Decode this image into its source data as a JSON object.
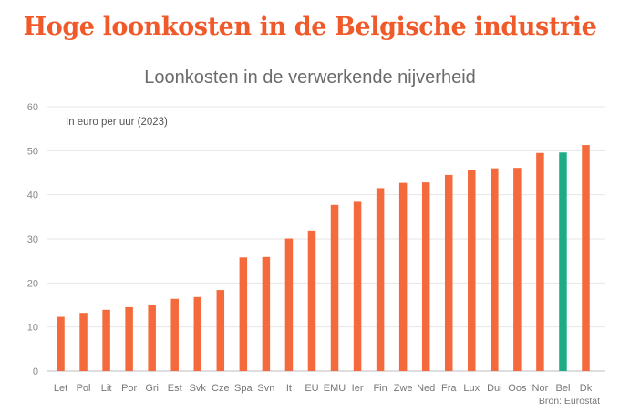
{
  "headline": "Hoge loonkosten in de Belgische industrie",
  "source": "Bron: Eurostat",
  "chart_data": {
    "type": "bar",
    "title": "Loonkosten in de verwerkende nijverheid",
    "subtitle": "In euro per uur (2023)",
    "xlabel": "",
    "ylabel": "",
    "ylim": [
      0,
      60
    ],
    "yticks": [
      0,
      10,
      20,
      30,
      40,
      50,
      60
    ],
    "grid": true,
    "categories": [
      "Let",
      "Pol",
      "Lit",
      "Por",
      "Gri",
      "Est",
      "Svk",
      "Cze",
      "Spa",
      "Svn",
      "It",
      "EU",
      "EMU",
      "Ier",
      "Fin",
      "Zwe",
      "Ned",
      "Fra",
      "Lux",
      "Dui",
      "Oos",
      "Nor",
      "Bel",
      "Dk"
    ],
    "values": [
      12.3,
      13.2,
      13.9,
      14.5,
      15.1,
      16.4,
      16.8,
      18.4,
      25.8,
      25.9,
      30.1,
      31.9,
      37.7,
      38.4,
      41.5,
      42.7,
      42.8,
      44.5,
      45.7,
      46.0,
      46.1,
      49.5,
      49.6,
      51.3
    ],
    "colors": {
      "default": "#f46a3c",
      "highlight": "#1cad86"
    },
    "highlight": "Bel"
  }
}
